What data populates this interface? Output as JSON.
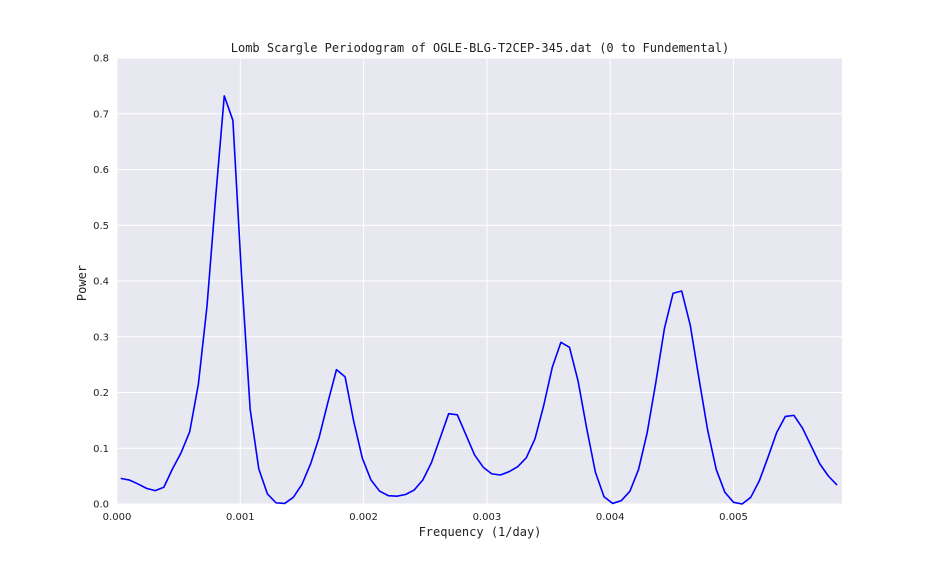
{
  "chart_data": {
    "type": "line",
    "title": "Lomb Scargle Periodogram of OGLE-BLG-T2CEP-345.dat (0 to Fundemental)",
    "xlabel": "Frequency (1/day)",
    "ylabel": "Power",
    "xlim": [
      0.0,
      0.00588
    ],
    "ylim": [
      0.0,
      0.8
    ],
    "xticks": [
      0.0,
      0.001,
      0.002,
      0.003,
      0.004,
      0.005
    ],
    "xtick_labels": [
      "0.000",
      "0.001",
      "0.002",
      "0.003",
      "0.004",
      "0.005"
    ],
    "yticks": [
      0.0,
      0.1,
      0.2,
      0.3,
      0.4,
      0.5,
      0.6,
      0.7,
      0.8
    ],
    "ytick_labels": [
      "0.0",
      "0.1",
      "0.2",
      "0.3",
      "0.4",
      "0.5",
      "0.6",
      "0.7",
      "0.8"
    ],
    "grid": true,
    "series": [
      {
        "color": "#0000ff",
        "x": [
          3e-05,
          0.0001,
          0.00017,
          0.00024,
          0.00031,
          0.00038,
          0.00045,
          0.00052,
          0.00059,
          0.00066,
          0.00073,
          0.0008,
          0.00087,
          0.00094,
          0.00101,
          0.00108,
          0.00115,
          0.00122,
          0.00129,
          0.00136,
          0.00143,
          0.0015,
          0.00157,
          0.00164,
          0.00171,
          0.00178,
          0.00185,
          0.00192,
          0.00199,
          0.00206,
          0.00213,
          0.0022,
          0.00227,
          0.00234,
          0.00241,
          0.00248,
          0.00255,
          0.00262,
          0.00269,
          0.00276,
          0.00283,
          0.0029,
          0.00297,
          0.00304,
          0.00311,
          0.00318,
          0.00325,
          0.00332,
          0.00339,
          0.00346,
          0.00353,
          0.0036,
          0.00367,
          0.00374,
          0.00381,
          0.00388,
          0.00395,
          0.00402,
          0.00409,
          0.00416,
          0.00423,
          0.0043,
          0.00437,
          0.00444,
          0.00451,
          0.00458,
          0.00465,
          0.00472,
          0.00479,
          0.00486,
          0.00493,
          0.005,
          0.00507,
          0.00514,
          0.00521,
          0.00528,
          0.00535,
          0.00542,
          0.00549,
          0.00556,
          0.00563,
          0.0057,
          0.00577,
          0.00584
        ],
        "y": [
          0.046,
          0.043,
          0.036,
          0.028,
          0.024,
          0.03,
          0.063,
          0.092,
          0.13,
          0.215,
          0.355,
          0.55,
          0.732,
          0.688,
          0.41,
          0.17,
          0.063,
          0.018,
          0.002,
          0.001,
          0.012,
          0.035,
          0.072,
          0.12,
          0.182,
          0.241,
          0.228,
          0.148,
          0.082,
          0.043,
          0.023,
          0.015,
          0.014,
          0.017,
          0.025,
          0.043,
          0.074,
          0.118,
          0.162,
          0.16,
          0.124,
          0.088,
          0.066,
          0.054,
          0.052,
          0.058,
          0.067,
          0.083,
          0.117,
          0.176,
          0.245,
          0.29,
          0.281,
          0.22,
          0.135,
          0.057,
          0.013,
          0.001,
          0.006,
          0.023,
          0.062,
          0.128,
          0.218,
          0.315,
          0.378,
          0.382,
          0.32,
          0.225,
          0.133,
          0.062,
          0.021,
          0.003,
          0.0,
          0.012,
          0.042,
          0.084,
          0.128,
          0.157,
          0.159,
          0.136,
          0.104,
          0.072,
          0.05,
          0.034
        ]
      }
    ]
  }
}
